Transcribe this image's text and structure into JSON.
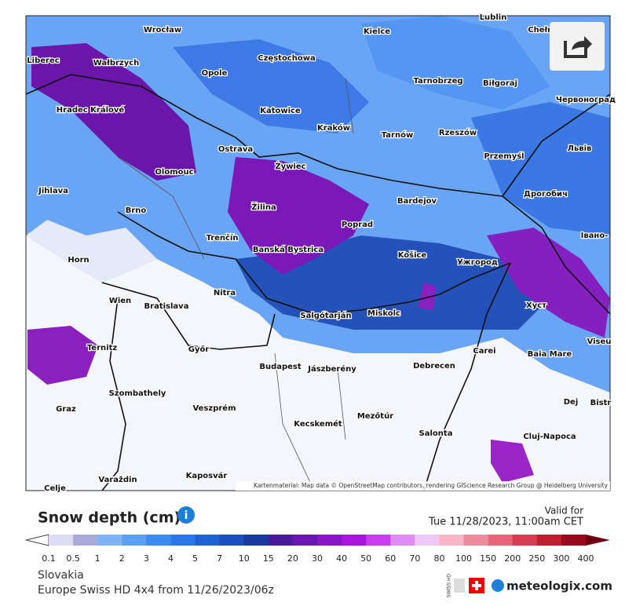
{
  "map": {
    "cities": [
      "Wrocław",
      "Częstochowa",
      "Kielce",
      "Lublin",
      "Chełm",
      "Opole",
      "Tarnobrzeg",
      "Biłgoraj",
      "Червоноград",
      "Liberec",
      "Wałbrzych",
      "Katowice",
      "Kraków",
      "Tarnów",
      "Rzeszów",
      "Hradec Králové",
      "Ostrava",
      "Przemyśl",
      "Львів",
      "Olomouc",
      "Żywiec",
      "Jihlava",
      "Brno",
      "Žilina",
      "Poprad",
      "Bardejov",
      "Дрогобич",
      "Trenčín",
      "Banská Bystrica",
      "Košice",
      "Ужгород",
      "Івано-",
      "Horn",
      "Wien",
      "Bratislava",
      "Nitra",
      "Хуст",
      "Salgótarján",
      "Miskolc",
      "Viseu",
      "Ternitz",
      "Győr",
      "Carei",
      "Baia Mare",
      "Budapest",
      "Jászberény",
      "Debrecen",
      "Szombathely",
      "Dej",
      "Bistr",
      "Graz",
      "Veszprém",
      "Mezőtúr",
      "Kecskemét",
      "Cluj-Napoca",
      "Salonta",
      "Varaždin",
      "Kaposvár",
      "Celje"
    ],
    "attribution": "Kartenmaterial: Map data © OpenStreetMap contributors, rendering GIScience Research Group @ Heidelberg University"
  },
  "legend": {
    "title": "Snow depth (cm)",
    "valid_for": "Valid for",
    "valid_time": "Tue 11/28/2023, 11:00am CET",
    "labels": [
      "0.1",
      "0.5",
      "1",
      "2",
      "3",
      "4",
      "5",
      "7",
      "10",
      "15",
      "20",
      "30",
      "40",
      "50",
      "60",
      "70",
      "80",
      "100",
      "150",
      "200",
      "250",
      "300",
      "400"
    ],
    "colors": [
      "#dcdcf5",
      "#aaaad8",
      "#7fb4f5",
      "#5ca0f5",
      "#3c8cf0",
      "#2a76e6",
      "#1f62d4",
      "#1a4fbe",
      "#193a9c",
      "#4a1a9a",
      "#6a16b0",
      "#8a14c8",
      "#a614de",
      "#c83cf0",
      "#e08cf5",
      "#f0c8f8",
      "#f8b4c8",
      "#f08ca0",
      "#e86478",
      "#d83c50",
      "#c01e32",
      "#9a0a1e",
      "#700010"
    ]
  },
  "footer": {
    "region": "Slovakia",
    "model": "Europe Swiss HD 4x4 from 11/26/2023/06z",
    "badge": "SWISS HD",
    "brand": "meteologix.com"
  }
}
